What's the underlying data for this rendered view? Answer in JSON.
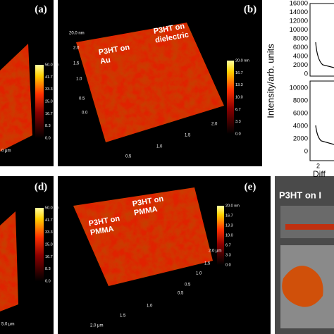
{
  "panels": [
    {
      "label": "(a)",
      "scale": [
        "50.0 nm",
        "41.7",
        "33.3",
        "25.0",
        "16.7",
        "8.3",
        "0.0"
      ],
      "axis": [
        "0 μm"
      ]
    },
    {
      "label": "(b)",
      "tags": [
        [
          "P3HT on",
          "Au"
        ],
        [
          "P3HT on",
          "dielectric"
        ]
      ],
      "scale": [
        "20.0 nm",
        "16.7",
        "13.3",
        "10.0",
        "6.7",
        "3.3",
        "0.0"
      ],
      "axis": [
        "20.0 nm",
        "2.0",
        "1.5",
        "1.0",
        "0.5",
        "0.0",
        "0.5",
        "1.0",
        "1.5",
        "2.0"
      ]
    },
    {
      "label": "(d)",
      "scale": [
        "50.0 nm",
        "41.7",
        "33.3",
        "25.0",
        "16.7",
        "8.3",
        "0.0"
      ],
      "axis": [
        "5.0 μm"
      ]
    },
    {
      "label": "(e)",
      "tags": [
        [
          "P3HT on",
          "PMMA"
        ],
        [
          "P3HT on",
          "PMMA"
        ]
      ],
      "scale": [
        "20.0 nm",
        "16.7",
        "13.3",
        "10.0",
        "6.7",
        "3.3",
        "0.0"
      ],
      "axis": [
        "2.0 μm",
        "1.5",
        "1.0",
        "0.5",
        "0.5",
        "1.0",
        "1.5",
        "2.0 μm"
      ]
    }
  ],
  "plot": {
    "ylabel": "Intensity/arb. units",
    "top_ticks": [
      "16000",
      "14000",
      "12000",
      "10000",
      "8000",
      "6000",
      "4000",
      "2000",
      "0"
    ],
    "bottom_ticks": [
      "10000",
      "8000",
      "6000",
      "4000",
      "2000",
      "0"
    ],
    "xtick": "2",
    "xlabel": "Diff"
  },
  "photo": {
    "title": "P3HT on I"
  }
}
